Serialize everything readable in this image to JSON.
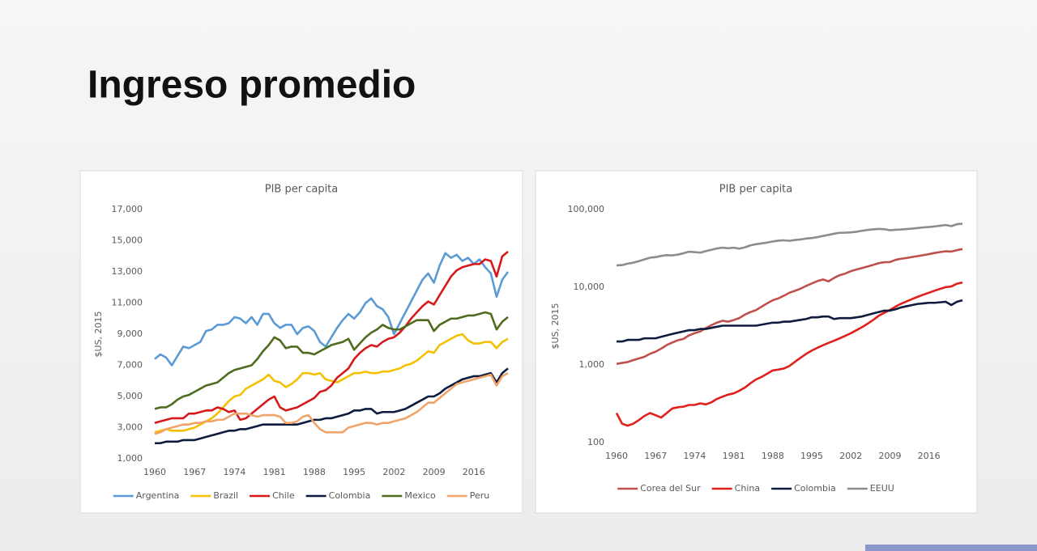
{
  "slide": {
    "title": "Ingreso promedio"
  },
  "chart_data": [
    {
      "type": "line",
      "title": "PIB per capita",
      "y_label": "$US, 2015",
      "legend": "bottom",
      "x": [
        1960,
        1961,
        1962,
        1963,
        1964,
        1965,
        1966,
        1967,
        1968,
        1969,
        1970,
        1971,
        1972,
        1973,
        1974,
        1975,
        1976,
        1977,
        1978,
        1979,
        1980,
        1981,
        1982,
        1983,
        1984,
        1985,
        1986,
        1987,
        1988,
        1989,
        1990,
        1991,
        1992,
        1993,
        1994,
        1995,
        1996,
        1997,
        1998,
        1999,
        2000,
        2001,
        2002,
        2003,
        2004,
        2005,
        2006,
        2007,
        2008,
        2009,
        2010,
        2011,
        2012,
        2013,
        2014,
        2015,
        2016,
        2017,
        2018,
        2019,
        2020,
        2021,
        2022
      ],
      "xlim": [
        1960,
        2022
      ],
      "xticks": [
        1960,
        1967,
        1974,
        1981,
        1988,
        1995,
        2002,
        2009,
        2016
      ],
      "ylim": [
        1000,
        17000
      ],
      "yticks": [
        {
          "value": 1000,
          "label": "1,000"
        },
        {
          "value": 3000,
          "label": "3,000"
        },
        {
          "value": 5000,
          "label": "5,000"
        },
        {
          "value": 7000,
          "label": "7,000"
        },
        {
          "value": 9000,
          "label": "9,000"
        },
        {
          "value": 11000,
          "label": "11,000"
        },
        {
          "value": 13000,
          "label": "13,000"
        },
        {
          "value": 15000,
          "label": "15,000"
        },
        {
          "value": 17000,
          "label": "17,000"
        }
      ],
      "series": [
        {
          "name": "Argentina",
          "color": "#5b9bd5",
          "values": [
            7400,
            7700,
            7500,
            7000,
            7600,
            8200,
            8100,
            8300,
            8500,
            9200,
            9300,
            9600,
            9600,
            9700,
            10100,
            10000,
            9700,
            10100,
            9600,
            10300,
            10300,
            9700,
            9400,
            9600,
            9600,
            9000,
            9400,
            9500,
            9200,
            8500,
            8200,
            8800,
            9400,
            9900,
            10300,
            10000,
            10400,
            11000,
            11300,
            10800,
            10600,
            10100,
            9000,
            9700,
            10400,
            11100,
            11800,
            12500,
            12900,
            12300,
            13400,
            14200,
            13900,
            14100,
            13700,
            13900,
            13500,
            13800,
            13300,
            12900,
            11400,
            12500,
            13000
          ]
        },
        {
          "name": "Brazil",
          "color": "#f5c000",
          "values": [
            2700,
            2800,
            2900,
            2800,
            2800,
            2800,
            2900,
            3000,
            3200,
            3400,
            3600,
            3900,
            4300,
            4700,
            5000,
            5100,
            5500,
            5700,
            5900,
            6100,
            6400,
            6000,
            5900,
            5600,
            5800,
            6100,
            6500,
            6500,
            6400,
            6500,
            6100,
            6000,
            5900,
            6100,
            6300,
            6500,
            6500,
            6600,
            6500,
            6500,
            6600,
            6600,
            6700,
            6800,
            7000,
            7100,
            7300,
            7600,
            7900,
            7800,
            8300,
            8500,
            8700,
            8900,
            9000,
            8600,
            8400,
            8400,
            8500,
            8500,
            8100,
            8500,
            8700
          ]
        },
        {
          "name": "Chile",
          "color": "#d7191c",
          "values": [
            3300,
            3400,
            3500,
            3600,
            3600,
            3600,
            3900,
            3900,
            4000,
            4100,
            4100,
            4300,
            4200,
            4000,
            4100,
            3500,
            3600,
            3900,
            4200,
            4500,
            4800,
            5000,
            4300,
            4100,
            4200,
            4300,
            4500,
            4700,
            4900,
            5300,
            5400,
            5700,
            6200,
            6500,
            6800,
            7400,
            7800,
            8100,
            8300,
            8200,
            8500,
            8700,
            8800,
            9100,
            9500,
            10000,
            10400,
            10800,
            11100,
            10900,
            11500,
            12100,
            12700,
            13100,
            13300,
            13400,
            13500,
            13500,
            13800,
            13700,
            12700,
            14000,
            14300
          ]
        },
        {
          "name": "Colombia",
          "color": "#0d1b3e",
          "values": [
            2000,
            2000,
            2100,
            2100,
            2100,
            2200,
            2200,
            2200,
            2300,
            2400,
            2500,
            2600,
            2700,
            2800,
            2800,
            2900,
            2900,
            3000,
            3100,
            3200,
            3200,
            3200,
            3200,
            3200,
            3200,
            3200,
            3300,
            3400,
            3500,
            3500,
            3600,
            3600,
            3700,
            3800,
            3900,
            4100,
            4100,
            4200,
            4200,
            3900,
            4000,
            4000,
            4000,
            4100,
            4200,
            4400,
            4600,
            4800,
            5000,
            5000,
            5200,
            5500,
            5700,
            5900,
            6100,
            6200,
            6300,
            6300,
            6400,
            6500,
            5900,
            6500,
            6800
          ]
        },
        {
          "name": "Mexico",
          "color": "#4e6b1e",
          "values": [
            4200,
            4300,
            4300,
            4500,
            4800,
            5000,
            5100,
            5300,
            5500,
            5700,
            5800,
            5900,
            6200,
            6500,
            6700,
            6800,
            6900,
            7000,
            7400,
            7900,
            8300,
            8800,
            8600,
            8100,
            8200,
            8200,
            7800,
            7800,
            7700,
            7900,
            8100,
            8300,
            8400,
            8500,
            8700,
            8000,
            8400,
            8800,
            9100,
            9300,
            9600,
            9400,
            9300,
            9300,
            9500,
            9700,
            9900,
            9900,
            9900,
            9200,
            9600,
            9800,
            10000,
            10000,
            10100,
            10200,
            10200,
            10300,
            10400,
            10300,
            9300,
            9800,
            10100
          ]
        },
        {
          "name": "Peru",
          "color": "#f0a46a",
          "values": [
            2600,
            2700,
            2900,
            3000,
            3100,
            3200,
            3200,
            3300,
            3300,
            3400,
            3400,
            3500,
            3500,
            3700,
            3900,
            3900,
            3900,
            3800,
            3700,
            3800,
            3800,
            3800,
            3700,
            3300,
            3300,
            3400,
            3700,
            3800,
            3300,
            2900,
            2700,
            2700,
            2700,
            2700,
            3000,
            3100,
            3200,
            3300,
            3300,
            3200,
            3300,
            3300,
            3400,
            3500,
            3600,
            3800,
            4000,
            4300,
            4600,
            4600,
            4900,
            5200,
            5500,
            5800,
            5900,
            6000,
            6100,
            6200,
            6300,
            6400,
            5700,
            6300,
            6500
          ]
        }
      ]
    },
    {
      "type": "line",
      "title": "PIB per capita",
      "y_label": "$US, 2015",
      "legend": "bottom",
      "yscale": "log",
      "x": [
        1960,
        1961,
        1962,
        1963,
        1964,
        1965,
        1966,
        1967,
        1968,
        1969,
        1970,
        1971,
        1972,
        1973,
        1974,
        1975,
        1976,
        1977,
        1978,
        1979,
        1980,
        1981,
        1982,
        1983,
        1984,
        1985,
        1986,
        1987,
        1988,
        1989,
        1990,
        1991,
        1992,
        1993,
        1994,
        1995,
        1996,
        1997,
        1998,
        1999,
        2000,
        2001,
        2002,
        2003,
        2004,
        2005,
        2006,
        2007,
        2008,
        2009,
        2010,
        2011,
        2012,
        2013,
        2014,
        2015,
        2016,
        2017,
        2018,
        2019,
        2020,
        2021,
        2022
      ],
      "xlim": [
        1960,
        2022
      ],
      "xticks": [
        1960,
        1967,
        1974,
        1981,
        1988,
        1995,
        2002,
        2009,
        2016
      ],
      "ylim": [
        100,
        100000
      ],
      "yticks": [
        100,
        {
          "value": 1000,
          "label": "1,000"
        },
        {
          "value": 10000,
          "label": "10,000"
        },
        {
          "value": 100000,
          "label": "100,000"
        }
      ],
      "series": [
        {
          "name": "Corea del Sur",
          "color": "#c0504d",
          "values": [
            1030,
            1060,
            1090,
            1150,
            1210,
            1270,
            1390,
            1480,
            1620,
            1800,
            1940,
            2080,
            2160,
            2400,
            2560,
            2700,
            2980,
            3250,
            3500,
            3700,
            3600,
            3780,
            4010,
            4440,
            4790,
            5080,
            5620,
            6210,
            6800,
            7190,
            7780,
            8510,
            9000,
            9600,
            10400,
            11200,
            12000,
            12600,
            11900,
            13200,
            14300,
            15000,
            16100,
            16900,
            17700,
            18500,
            19400,
            20400,
            21000,
            21100,
            22500,
            23300,
            23800,
            24500,
            25200,
            25900,
            26700,
            27600,
            28400,
            29000,
            28800,
            30000,
            31000
          ]
        },
        {
          "name": "China",
          "color": "#e0201b",
          "values": [
            240,
            175,
            165,
            175,
            195,
            220,
            240,
            225,
            210,
            240,
            275,
            285,
            290,
            305,
            305,
            320,
            310,
            330,
            365,
            390,
            415,
            430,
            465,
            510,
            580,
            650,
            700,
            770,
            850,
            870,
            900,
            970,
            1100,
            1240,
            1390,
            1530,
            1660,
            1790,
            1920,
            2050,
            2200,
            2370,
            2560,
            2800,
            3060,
            3390,
            3790,
            4300,
            4690,
            5100,
            5630,
            6130,
            6580,
            7060,
            7540,
            8020,
            8510,
            9020,
            9540,
            10030,
            10230,
            11100,
            11500
          ]
        },
        {
          "name": "Colombia",
          "color": "#0d1b3e",
          "values": [
            2000,
            2000,
            2100,
            2100,
            2100,
            2200,
            2200,
            2200,
            2300,
            2400,
            2500,
            2600,
            2700,
            2800,
            2800,
            2900,
            2900,
            3000,
            3100,
            3200,
            3200,
            3200,
            3200,
            3200,
            3200,
            3200,
            3300,
            3400,
            3500,
            3500,
            3600,
            3600,
            3700,
            3800,
            3900,
            4100,
            4100,
            4200,
            4200,
            3900,
            4000,
            4000,
            4000,
            4100,
            4200,
            4400,
            4600,
            4800,
            5000,
            5000,
            5200,
            5500,
            5700,
            5900,
            6100,
            6200,
            6300,
            6300,
            6400,
            6500,
            5900,
            6500,
            6800
          ]
        },
        {
          "name": "EEUU",
          "color": "#8c8c8c",
          "values": [
            19100,
            19300,
            20100,
            20700,
            21700,
            22800,
            24000,
            24400,
            25300,
            25900,
            25700,
            26300,
            27400,
            28700,
            28300,
            27900,
            29200,
            30300,
            31600,
            32300,
            31800,
            32300,
            31400,
            32600,
            34600,
            35800,
            36700,
            37600,
            38800,
            39800,
            40200,
            39600,
            40600,
            41200,
            42400,
            43000,
            44200,
            45700,
            47200,
            48900,
            50200,
            50400,
            50900,
            51800,
            53300,
            54600,
            55600,
            56300,
            55900,
            54100,
            55000,
            55400,
            56200,
            56800,
            57800,
            59000,
            59600,
            60600,
            62000,
            63200,
            61200,
            64800,
            65800
          ]
        }
      ]
    }
  ]
}
